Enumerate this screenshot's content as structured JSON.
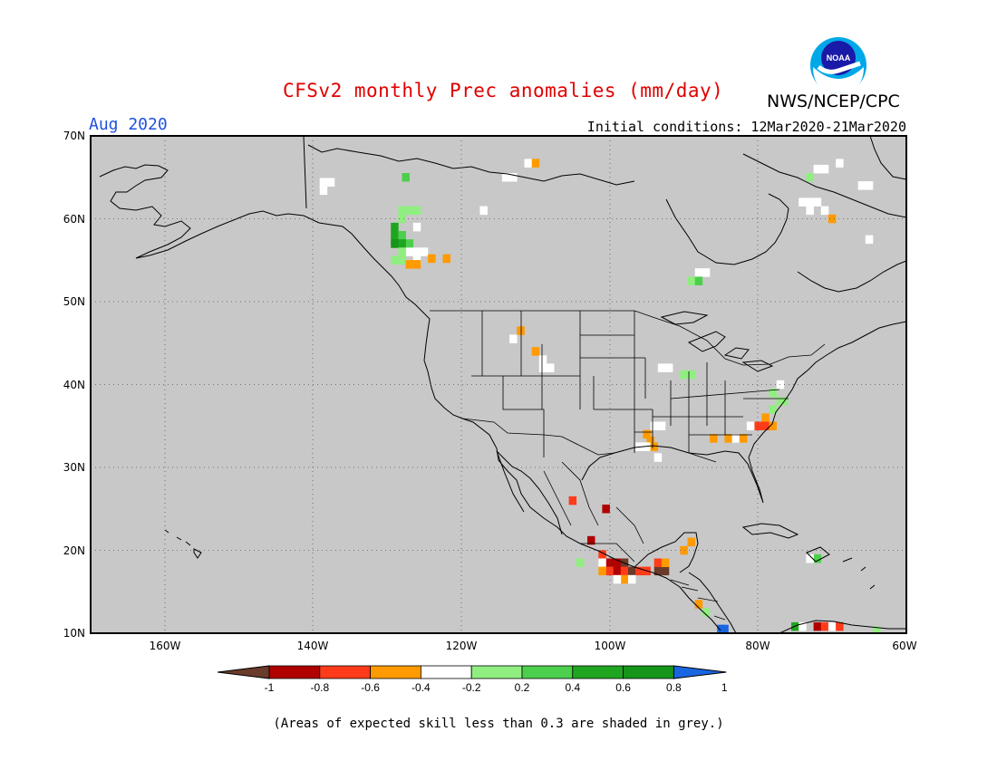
{
  "header": {
    "title": "CFSv2 monthly Prec anomalies (mm/day)",
    "month": "Aug 2020",
    "initial_conditions": "Initial conditions: 12Mar2020-21Mar2020",
    "agency": "NWS/NCEP/CPC",
    "logo_text": "NOAA"
  },
  "map": {
    "lon_range": [
      -170,
      -60
    ],
    "lat_range": [
      10,
      70
    ],
    "background_color": "#c8c8c8",
    "grid": "dotted",
    "lat_labels": [
      "70N",
      "60N",
      "50N",
      "40N",
      "30N",
      "20N",
      "10N"
    ],
    "lon_labels": [
      "160W",
      "140W",
      "120W",
      "100W",
      "80W",
      "60W"
    ]
  },
  "colorbar": {
    "ticks": [
      "-1",
      "-0.8",
      "-0.6",
      "-0.4",
      "-0.2",
      "0.2",
      "0.4",
      "0.6",
      "0.8",
      "1"
    ],
    "colors": [
      "#6a3a2a",
      "#b00000",
      "#ff3b1a",
      "#ff9a00",
      "#ffffff",
      "#90ee80",
      "#4ccf4c",
      "#20a520",
      "#15951a",
      "#1a66e0"
    ]
  },
  "footnote": "(Areas of expected skill less than 0.3 are shaded in grey.)",
  "anomaly_cells": [
    {
      "lon": -138.6,
      "lat": 64.4,
      "c": "#ffffff"
    },
    {
      "lon": -137.6,
      "lat": 64.4,
      "c": "#ffffff"
    },
    {
      "lon": -138.6,
      "lat": 63.4,
      "c": "#ffffff"
    },
    {
      "lon": -127.5,
      "lat": 65.0,
      "c": "#4ccf4c"
    },
    {
      "lon": -126.0,
      "lat": 61.0,
      "c": "#90ee80"
    },
    {
      "lon": -127.0,
      "lat": 61.0,
      "c": "#90ee80"
    },
    {
      "lon": -128.0,
      "lat": 61.0,
      "c": "#90ee80"
    },
    {
      "lon": -128.0,
      "lat": 60.0,
      "c": "#90ee80"
    },
    {
      "lon": -129.0,
      "lat": 59.0,
      "c": "#20a520"
    },
    {
      "lon": -129.0,
      "lat": 58.0,
      "c": "#20a520"
    },
    {
      "lon": -128.0,
      "lat": 58.0,
      "c": "#4ccf4c"
    },
    {
      "lon": -127.0,
      "lat": 57.0,
      "c": "#4ccf4c"
    },
    {
      "lon": -128.0,
      "lat": 57.0,
      "c": "#20a520"
    },
    {
      "lon": -129.0,
      "lat": 57.0,
      "c": "#15951a"
    },
    {
      "lon": -126.0,
      "lat": 59.0,
      "c": "#ffffff"
    },
    {
      "lon": -126.0,
      "lat": 56.0,
      "c": "#ffffff"
    },
    {
      "lon": -125.0,
      "lat": 56.0,
      "c": "#ffffff"
    },
    {
      "lon": -127.0,
      "lat": 56.0,
      "c": "#ffffff"
    },
    {
      "lon": -126.0,
      "lat": 55.0,
      "c": "#ffffff"
    },
    {
      "lon": -128.0,
      "lat": 56.0,
      "c": "#90ee80"
    },
    {
      "lon": -129.0,
      "lat": 55.0,
      "c": "#90ee80"
    },
    {
      "lon": -128.0,
      "lat": 55.0,
      "c": "#90ee80"
    },
    {
      "lon": -124.0,
      "lat": 55.2,
      "c": "#ff9a00"
    },
    {
      "lon": -127.0,
      "lat": 54.5,
      "c": "#ff9a00"
    },
    {
      "lon": -126.0,
      "lat": 54.5,
      "c": "#ff9a00"
    },
    {
      "lon": -122.0,
      "lat": 55.2,
      "c": "#ff9a00"
    },
    {
      "lon": -114.0,
      "lat": 65.0,
      "c": "#ffffff"
    },
    {
      "lon": -113.0,
      "lat": 65.0,
      "c": "#ffffff"
    },
    {
      "lon": -111.0,
      "lat": 66.7,
      "c": "#ffffff"
    },
    {
      "lon": -110.0,
      "lat": 66.7,
      "c": "#ff9a00"
    },
    {
      "lon": -117.0,
      "lat": 61.0,
      "c": "#ffffff"
    },
    {
      "lon": -88.0,
      "lat": 53.5,
      "c": "#ffffff"
    },
    {
      "lon": -87.0,
      "lat": 53.5,
      "c": "#ffffff"
    },
    {
      "lon": -89.0,
      "lat": 52.5,
      "c": "#90ee80"
    },
    {
      "lon": -88.0,
      "lat": 52.5,
      "c": "#4ccf4c"
    },
    {
      "lon": -73.0,
      "lat": 65.0,
      "c": "#90ee80"
    },
    {
      "lon": -72.0,
      "lat": 66.0,
      "c": "#ffffff"
    },
    {
      "lon": -71.0,
      "lat": 66.0,
      "c": "#ffffff"
    },
    {
      "lon": -69.0,
      "lat": 66.7,
      "c": "#ffffff"
    },
    {
      "lon": -65.0,
      "lat": 64.0,
      "c": "#ffffff"
    },
    {
      "lon": -66.0,
      "lat": 64.0,
      "c": "#ffffff"
    },
    {
      "lon": -74.0,
      "lat": 62.0,
      "c": "#ffffff"
    },
    {
      "lon": -73.0,
      "lat": 62.0,
      "c": "#ffffff"
    },
    {
      "lon": -72.0,
      "lat": 62.0,
      "c": "#ffffff"
    },
    {
      "lon": -73.0,
      "lat": 61.0,
      "c": "#ffffff"
    },
    {
      "lon": -71.0,
      "lat": 61.0,
      "c": "#ffffff"
    },
    {
      "lon": -70.0,
      "lat": 60.0,
      "c": "#ff9a00"
    },
    {
      "lon": -65.0,
      "lat": 57.5,
      "c": "#ffffff"
    },
    {
      "lon": -112.0,
      "lat": 46.5,
      "c": "#ff9a00"
    },
    {
      "lon": -113.0,
      "lat": 45.5,
      "c": "#ffffff"
    },
    {
      "lon": -110.0,
      "lat": 44.0,
      "c": "#ff9a00"
    },
    {
      "lon": -109.0,
      "lat": 43.0,
      "c": "#ffffff"
    },
    {
      "lon": -108.0,
      "lat": 42.0,
      "c": "#ffffff"
    },
    {
      "lon": -109.0,
      "lat": 42.0,
      "c": "#ffffff"
    },
    {
      "lon": -92.0,
      "lat": 42.0,
      "c": "#ffffff"
    },
    {
      "lon": -93.0,
      "lat": 42.0,
      "c": "#ffffff"
    },
    {
      "lon": -90.0,
      "lat": 41.2,
      "c": "#90ee80"
    },
    {
      "lon": -89.0,
      "lat": 41.2,
      "c": "#90ee80"
    },
    {
      "lon": -77.0,
      "lat": 40.0,
      "c": "#ffffff"
    },
    {
      "lon": -78.0,
      "lat": 39.0,
      "c": "#90ee80"
    },
    {
      "lon": -77.0,
      "lat": 38.0,
      "c": "#90ee80"
    },
    {
      "lon": -76.5,
      "lat": 38.0,
      "c": "#90ee80"
    },
    {
      "lon": -78.0,
      "lat": 37.0,
      "c": "#90ee80"
    },
    {
      "lon": -79.0,
      "lat": 36.0,
      "c": "#ff9a00"
    },
    {
      "lon": -80.0,
      "lat": 35.0,
      "c": "#ff3b1a"
    },
    {
      "lon": -79.0,
      "lat": 35.0,
      "c": "#ff3b1a"
    },
    {
      "lon": -78.0,
      "lat": 35.0,
      "c": "#ff9a00"
    },
    {
      "lon": -81.0,
      "lat": 35.0,
      "c": "#ffffff"
    },
    {
      "lon": -84.0,
      "lat": 33.5,
      "c": "#ff9a00"
    },
    {
      "lon": -83.0,
      "lat": 33.5,
      "c": "#ffffff"
    },
    {
      "lon": -82.0,
      "lat": 33.5,
      "c": "#ff9a00"
    },
    {
      "lon": -86.0,
      "lat": 33.5,
      "c": "#ff9a00"
    },
    {
      "lon": -94.0,
      "lat": 35.0,
      "c": "#ffffff"
    },
    {
      "lon": -93.0,
      "lat": 35.0,
      "c": "#ffffff"
    },
    {
      "lon": -95.0,
      "lat": 34.0,
      "c": "#ff9a00"
    },
    {
      "lon": -94.5,
      "lat": 33.2,
      "c": "#ff9a00"
    },
    {
      "lon": -96.0,
      "lat": 32.5,
      "c": "#ffffff"
    },
    {
      "lon": -95.0,
      "lat": 32.5,
      "c": "#ffffff"
    },
    {
      "lon": -94.0,
      "lat": 32.5,
      "c": "#ff9a00"
    },
    {
      "lon": -93.5,
      "lat": 31.2,
      "c": "#ffffff"
    },
    {
      "lon": -105.0,
      "lat": 26.0,
      "c": "#ff3b1a"
    },
    {
      "lon": -100.5,
      "lat": 25.0,
      "c": "#b00000"
    },
    {
      "lon": -102.5,
      "lat": 21.2,
      "c": "#b00000"
    },
    {
      "lon": -101.0,
      "lat": 19.5,
      "c": "#ff3b1a"
    },
    {
      "lon": -100.0,
      "lat": 18.5,
      "c": "#b00000"
    },
    {
      "lon": -99.0,
      "lat": 18.5,
      "c": "#b00000"
    },
    {
      "lon": -101.0,
      "lat": 18.5,
      "c": "#ffffff"
    },
    {
      "lon": -98.0,
      "lat": 18.5,
      "c": "#6a3a2a"
    },
    {
      "lon": -100.0,
      "lat": 17.5,
      "c": "#ff3b1a"
    },
    {
      "lon": -99.0,
      "lat": 17.5,
      "c": "#b00000"
    },
    {
      "lon": -101.0,
      "lat": 17.5,
      "c": "#ff9a00"
    },
    {
      "lon": -98.0,
      "lat": 17.5,
      "c": "#ff3b1a"
    },
    {
      "lon": -97.0,
      "lat": 17.5,
      "c": "#6a3a2a"
    },
    {
      "lon": -96.0,
      "lat": 17.5,
      "c": "#ff3b1a"
    },
    {
      "lon": -95.0,
      "lat": 17.5,
      "c": "#ff3b1a"
    },
    {
      "lon": -93.5,
      "lat": 17.5,
      "c": "#6a3a2a"
    },
    {
      "lon": -92.5,
      "lat": 17.5,
      "c": "#6a3a2a"
    },
    {
      "lon": -93.5,
      "lat": 18.5,
      "c": "#ff3b1a"
    },
    {
      "lon": -92.5,
      "lat": 18.5,
      "c": "#ff9a00"
    },
    {
      "lon": -98.0,
      "lat": 16.5,
      "c": "#ff9a00"
    },
    {
      "lon": -99.0,
      "lat": 16.5,
      "c": "#ffffff"
    },
    {
      "lon": -97.0,
      "lat": 16.5,
      "c": "#ffffff"
    },
    {
      "lon": -104.0,
      "lat": 18.5,
      "c": "#90ee80"
    },
    {
      "lon": -90.0,
      "lat": 20.0,
      "c": "#ff9a00"
    },
    {
      "lon": -89.0,
      "lat": 21.0,
      "c": "#ff9a00"
    },
    {
      "lon": -88.0,
      "lat": 13.5,
      "c": "#ff9a00"
    },
    {
      "lon": -87.0,
      "lat": 12.5,
      "c": "#90ee80"
    },
    {
      "lon": -85.0,
      "lat": 10.5,
      "c": "#1a66e0"
    },
    {
      "lon": -84.5,
      "lat": 10.5,
      "c": "#1a66e0"
    },
    {
      "lon": -72.0,
      "lat": 19.0,
      "c": "#4ccf4c"
    },
    {
      "lon": -73.0,
      "lat": 19.0,
      "c": "#ffffff"
    },
    {
      "lon": -75.0,
      "lat": 10.8,
      "c": "#20a520"
    },
    {
      "lon": -74.0,
      "lat": 10.8,
      "c": "#ffffff"
    },
    {
      "lon": -72.0,
      "lat": 10.8,
      "c": "#b00000"
    },
    {
      "lon": -71.0,
      "lat": 10.8,
      "c": "#ff3b1a"
    },
    {
      "lon": -70.0,
      "lat": 10.8,
      "c": "#ffffff"
    },
    {
      "lon": -69.0,
      "lat": 10.8,
      "c": "#ff3b1a"
    },
    {
      "lon": -64.0,
      "lat": 10.3,
      "c": "#90ee80"
    }
  ]
}
